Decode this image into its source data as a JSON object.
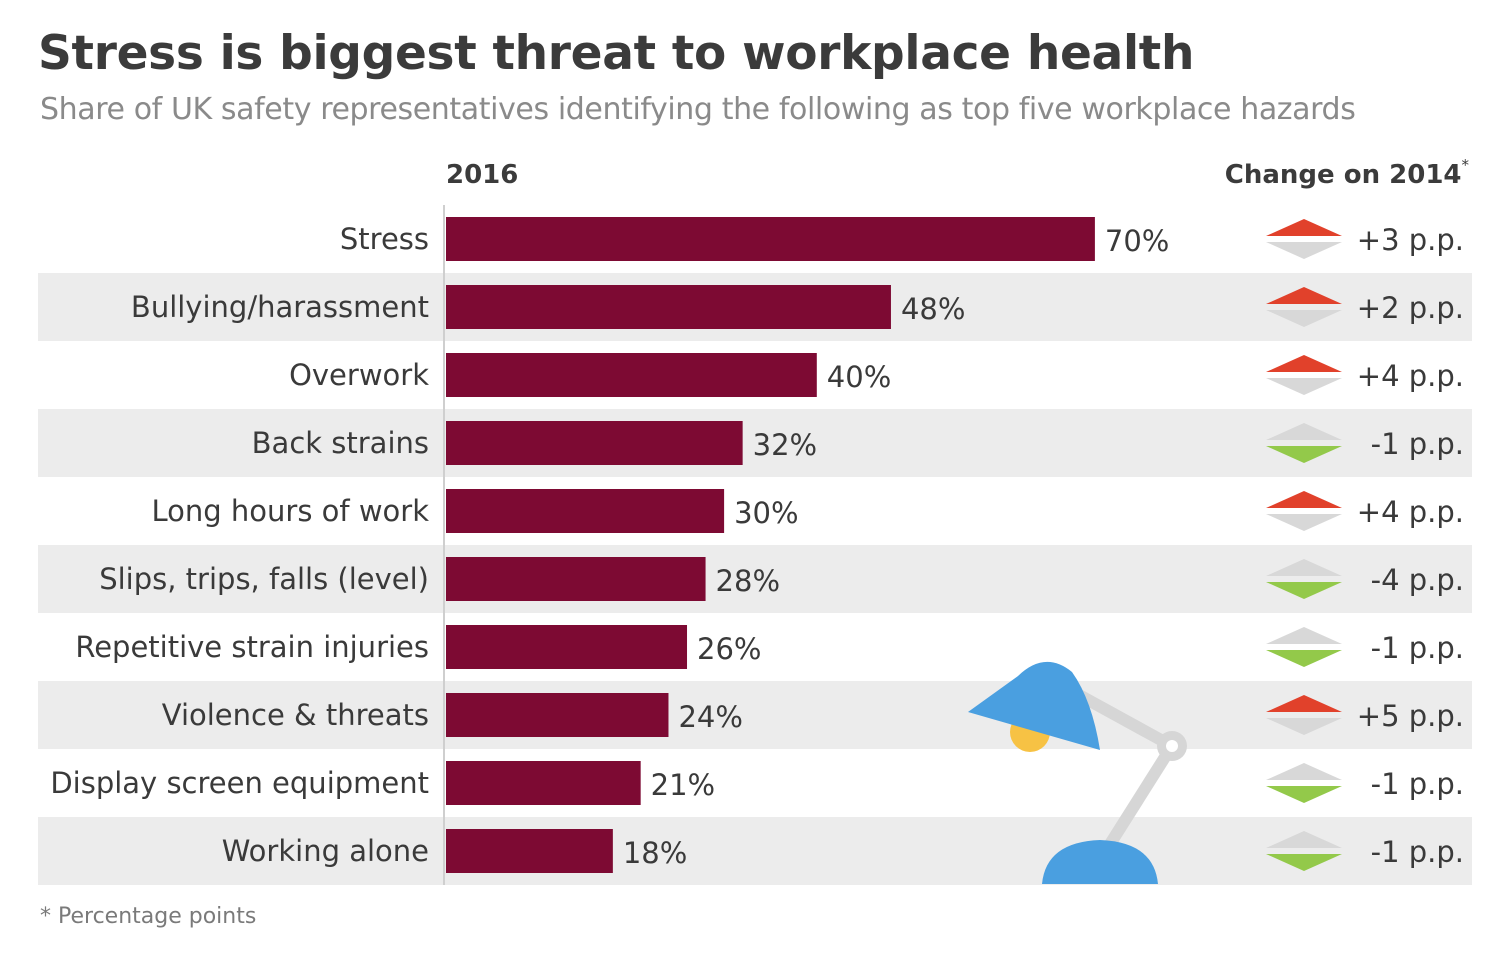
{
  "title": "Stress is biggest threat to workplace health",
  "subtitle": "Share of UK safety representatives identifying the following as top five workplace hazards",
  "column_headers": {
    "year": "2016",
    "change": "Change on 2014",
    "change_marker": "*"
  },
  "footnote": "* Percentage points",
  "colors": {
    "bar": "#7d0a33",
    "band": "#ececec",
    "up": "#e1412b",
    "down": "#93c94a",
    "neutral_arrow": "#d8d8d8",
    "lamp": "#4a9fe0",
    "lamp_arm": "#d6d6d6",
    "bulb": "#f7c244"
  },
  "decoration": {
    "icon": "desk-lamp-icon"
  },
  "chart_data": {
    "type": "bar",
    "orientation": "horizontal",
    "categories": [
      "Stress",
      "Bullying/harassment",
      "Overwork",
      "Back strains",
      "Long hours of work",
      "Slips, trips, falls (level)",
      "Repetitive strain injuries",
      "Violence & threats",
      "Display screen equipment",
      "Working alone"
    ],
    "values": [
      70,
      48,
      40,
      32,
      30,
      28,
      26,
      24,
      21,
      18
    ],
    "value_labels": [
      "70%",
      "48%",
      "40%",
      "32%",
      "30%",
      "28%",
      "26%",
      "24%",
      "21%",
      "18%"
    ],
    "change": [
      3,
      2,
      4,
      -1,
      4,
      -4,
      -1,
      5,
      -1,
      -1
    ],
    "change_labels": [
      "+3 p.p.",
      "+2 p.p.",
      "+4 p.p.",
      "-1 p.p.",
      "+4 p.p.",
      "-4 p.p.",
      "-1 p.p.",
      "+5 p.p.",
      "-1 p.p.",
      "-1 p.p."
    ],
    "xlim": [
      0,
      100
    ],
    "grid": false
  }
}
